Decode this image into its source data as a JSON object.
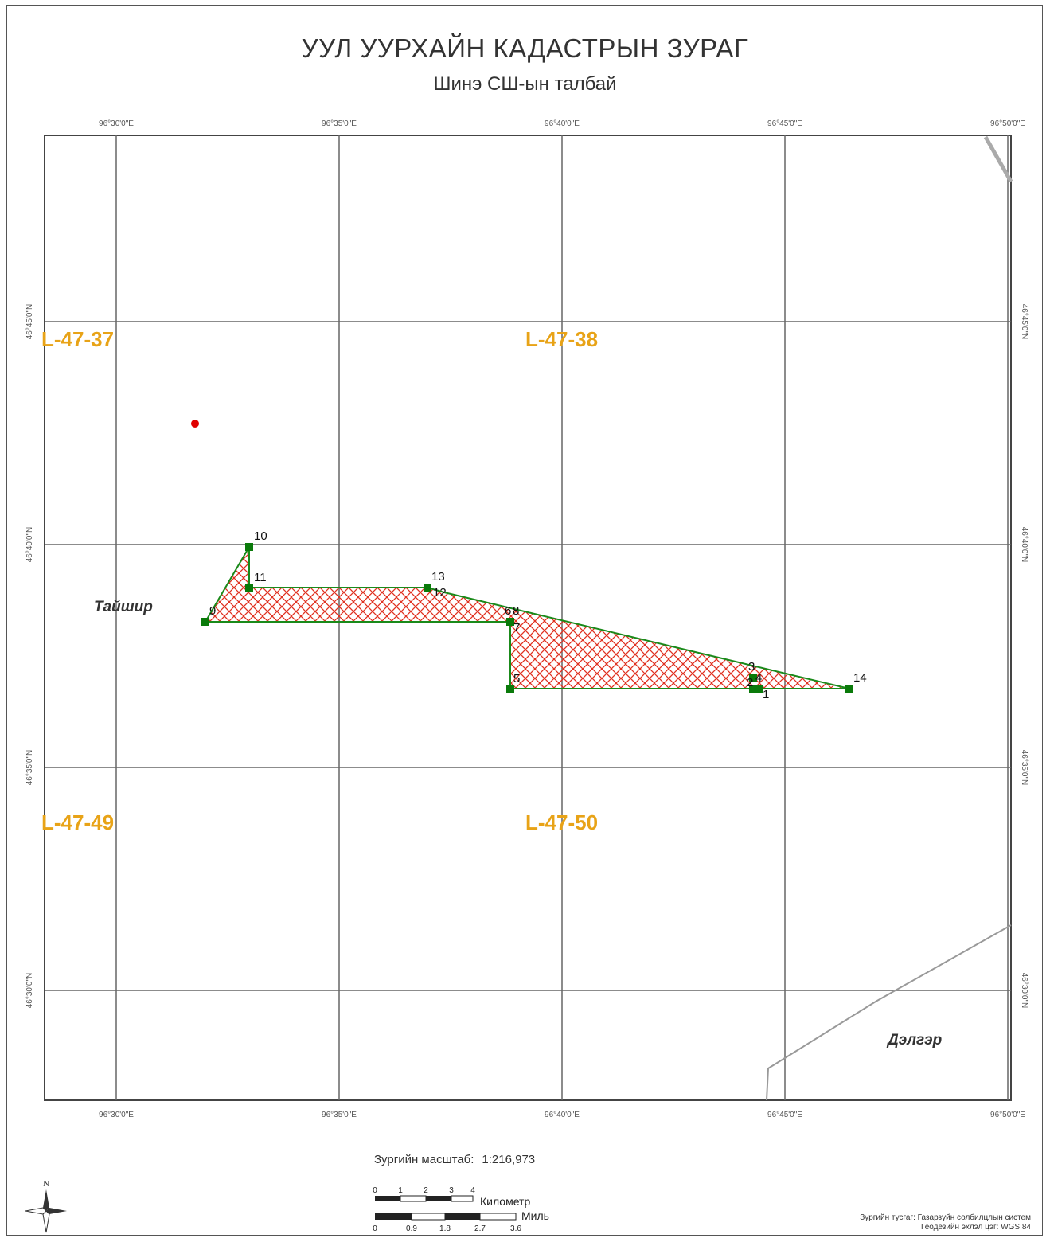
{
  "title": "УУЛ УУРХАЙН КАДАСТРЫН ЗУРАГ",
  "subtitle": "Шинэ СШ-ын талбай",
  "lon_ticks": [
    "96°30'0\"E",
    "96°35'0\"E",
    "96°40'0\"E",
    "96°45'0\"E",
    "96°50'0\"E"
  ],
  "lat_ticks": [
    "46°45'0\"N",
    "46°40'0\"N",
    "46°35'0\"N",
    "46°30'0\"N"
  ],
  "sheets": [
    "L-47-37",
    "L-47-38",
    "L-47-49",
    "L-47-50"
  ],
  "places": [
    "Тайшир",
    "Дэлгэр"
  ],
  "points": [
    "1",
    "2",
    "3",
    "4",
    "5",
    "6",
    "7",
    "8",
    "9",
    "10",
    "11",
    "12",
    "13",
    "14"
  ],
  "scale": {
    "label": "Зургийн масштаб:",
    "value": "1:216,973"
  },
  "scalebar": {
    "km_label": "Километр",
    "km_ticks": [
      "0",
      "1",
      "2",
      "3",
      "4"
    ],
    "mi_label": "Миль",
    "mi_ticks": [
      "0",
      "0.9",
      "1.8",
      "2.7",
      "3.6"
    ]
  },
  "north_label": "N",
  "footer": {
    "projection": "Зургийн тусгаг: Газарзүйн солбилцлын систем",
    "datum": "Геодезийн эхлэл цэг: WGS 84"
  },
  "colors": {
    "sheet_label": "#e8a317",
    "polygon_outline": "#1a8a1a",
    "hatch": "#e03020",
    "vertex": "#0a7a0a",
    "marker": "#e00000"
  }
}
